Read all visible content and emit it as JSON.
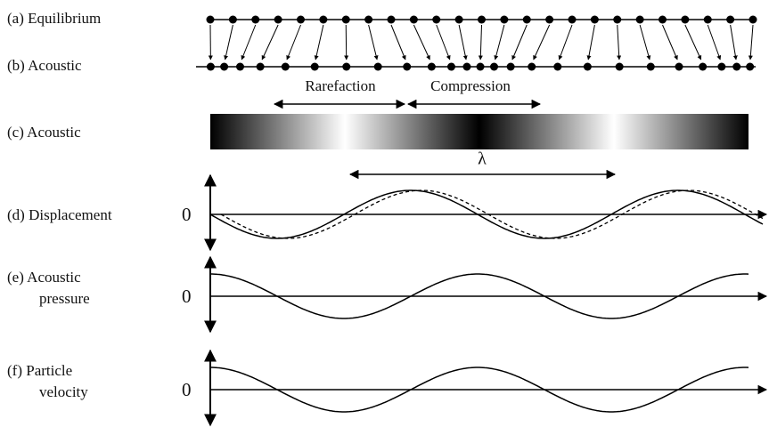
{
  "panels": [
    {
      "label": [
        "(a)  Equilibrium"
      ]
    },
    {
      "label": [
        "(b) Acoustic"
      ]
    },
    {
      "label": [
        "(c)  Acoustic"
      ]
    },
    {
      "label": [
        "(d)  Displacement"
      ],
      "zero": "0"
    },
    {
      "label": [
        "(e)  Acoustic",
        "pressure"
      ],
      "zero": "0"
    },
    {
      "label": [
        "(f)  Particle",
        "velocity"
      ],
      "zero": "0"
    }
  ],
  "annotations": {
    "rarefaction": "Rarefaction",
    "compression": "Compression",
    "wavelength": "λ"
  }
}
